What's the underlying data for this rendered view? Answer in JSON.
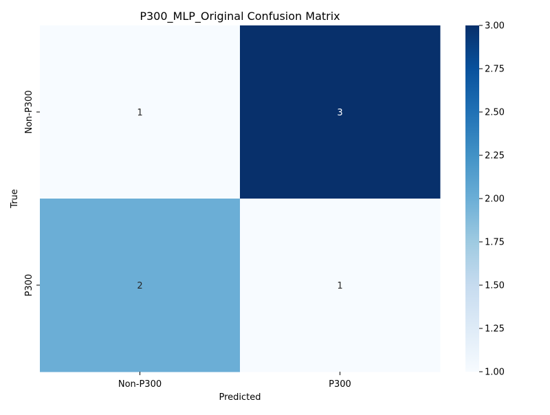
{
  "chart_data": {
    "type": "heatmap",
    "title": "P300_MLP_Original Confusion Matrix",
    "xlabel": "Predicted",
    "ylabel": "True",
    "x_categories": [
      "Non-P300",
      "P300"
    ],
    "y_categories": [
      "Non-P300",
      "P300"
    ],
    "values": [
      [
        1,
        3
      ],
      [
        2,
        1
      ]
    ],
    "colormap": "Blues",
    "colormap_stops": [
      "#f7fbff",
      "#deebf7",
      "#c6dbef",
      "#9ecae1",
      "#6baed6",
      "#4292c6",
      "#2171b5",
      "#08519c",
      "#08306b"
    ],
    "colorbar_range": [
      1.0,
      3.0
    ],
    "colorbar_ticks": [
      "1.00",
      "1.25",
      "1.50",
      "1.75",
      "2.00",
      "2.25",
      "2.50",
      "2.75",
      "3.00"
    ]
  }
}
